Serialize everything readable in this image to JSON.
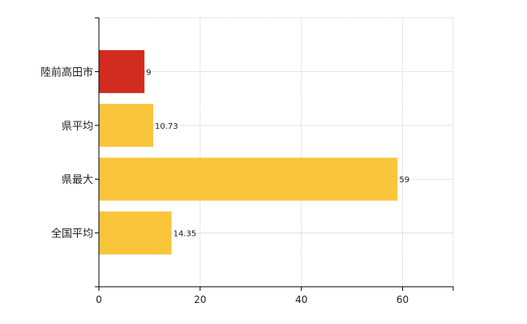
{
  "chart_data": {
    "type": "bar",
    "orientation": "horizontal",
    "categories": [
      "陸前高田市",
      "県平均",
      "県最大",
      "全国平均"
    ],
    "values": [
      9,
      10.73,
      59,
      14.35
    ],
    "value_labels": [
      "9",
      "10.73",
      "59",
      "14.35"
    ],
    "bar_colors": [
      "#d22b1f",
      "#f9c53a",
      "#f9c53a",
      "#f9c53a"
    ],
    "x_ticks": [
      0,
      20,
      40,
      60
    ],
    "x_tick_labels": [
      "0",
      "20",
      "40",
      "60"
    ],
    "xlim": [
      0,
      70
    ],
    "grid": true,
    "legend": "none"
  }
}
